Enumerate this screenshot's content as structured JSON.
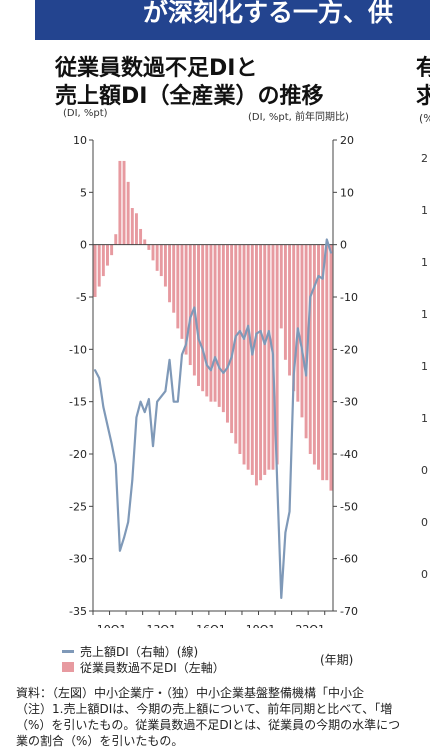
{
  "banner": {
    "text": "が深刻化する一方、供"
  },
  "title": {
    "line1": "従業員数過不足DIと",
    "line2": "売上額DI（全産業）の推移"
  },
  "axis_units": {
    "left": "(DI, %pt)",
    "right": "(DI, %pt, 前年同期比)"
  },
  "right_panel": {
    "title_frag1": "有",
    "title_frag2": "求",
    "unit_frag": "(%",
    "tick_frags": [
      "2",
      "1",
      "1",
      "1",
      "1",
      "1",
      "0",
      "0",
      "0"
    ]
  },
  "legend": {
    "line_label": "売上額DI（右軸）(線)",
    "bar_label": "従業員数過不足DI（左軸）"
  },
  "year_label": "(年期)",
  "notes": {
    "line1": "資料：（左図）中小企業庁・（独）中小企業基盤整備機構「中小企",
    "line2": "（注）1.売上額DIは、今期の売上額について、前年同期と比べて、「増",
    "line3": "（%）を引いたもの。従業員数過不足DIとは、従業員の今期の水準につ",
    "line4": "業の割合（%）を引いたもの。"
  },
  "chart_data": {
    "type": "bar",
    "title": "従業員数過不足DIと売上額DI（全産業）の推移",
    "x_tick_labels": [
      "10Q1",
      "13Q1",
      "16Q1",
      "19Q1",
      "22Q1"
    ],
    "x_tick_positions": [
      4,
      16,
      28,
      40,
      52
    ],
    "left_axis": {
      "label": "(DI, %pt)",
      "ylim": [
        -35,
        10
      ],
      "ticks": [
        10,
        5,
        0,
        -5,
        -10,
        -15,
        -20,
        -25,
        -30,
        -35
      ]
    },
    "right_axis": {
      "label": "(DI, %pt, 前年同期比)",
      "ylim": [
        -70,
        20
      ],
      "ticks": [
        20,
        10,
        0,
        -10,
        -20,
        -30,
        -40,
        -50,
        -60,
        -70
      ]
    },
    "series": [
      {
        "name": "従業員数過不足DI（左軸）",
        "axis": "left",
        "kind": "bar",
        "color": "#e79aa0",
        "values": [
          -5.0,
          -4.0,
          -3.0,
          -2.0,
          -1.0,
          1.0,
          8.0,
          8.0,
          6.0,
          3.5,
          3.0,
          1.5,
          0.5,
          -0.5,
          -1.5,
          -2.5,
          -3.0,
          -4.0,
          -5.5,
          -6.5,
          -8.0,
          -9.0,
          -10.5,
          -11.5,
          -12.5,
          -13.5,
          -14.0,
          -14.5,
          -15.0,
          -15.0,
          -15.5,
          -16.0,
          -17.0,
          -18.0,
          -19.0,
          -20.0,
          -21.0,
          -21.5,
          -22.0,
          -23.0,
          -22.5,
          -22.0,
          -21.5,
          -21.5,
          -21.0,
          -8.0,
          -11.0,
          -12.5,
          -14.0,
          -15.0,
          -16.5,
          -18.5,
          -20.0,
          -21.0,
          -21.5,
          -22.5,
          -22.5,
          -23.5
        ]
      },
      {
        "name": "売上額DI（右軸）(線)",
        "axis": "right",
        "kind": "line",
        "color": "#7f99b8",
        "values": [
          -24.0,
          -25.5,
          -31.0,
          -34.5,
          -38.0,
          -42.0,
          -58.5,
          -56.0,
          -53.0,
          -45.0,
          -33.0,
          -30.0,
          -32.0,
          -29.5,
          -38.5,
          -30.0,
          -29.0,
          -28.0,
          -22.0,
          -30.0,
          -30.0,
          -21.0,
          -19.0,
          -14.0,
          -12.0,
          -18.0,
          -20.0,
          -23.0,
          -24.0,
          -21.5,
          -23.5,
          -24.5,
          -23.5,
          -21.5,
          -17.5,
          -16.5,
          -18.0,
          -15.5,
          -21.0,
          -17.0,
          -16.5,
          -19.0,
          -16.5,
          -21.0,
          -45.0,
          -67.5,
          -55.0,
          -51.0,
          -25.0,
          -16.0,
          -20.0,
          -25.0,
          -10.0,
          -8.0,
          -6.0,
          -6.5,
          1.0,
          -1.5
        ]
      }
    ],
    "grid": false,
    "legend_position": "bottom-left"
  }
}
